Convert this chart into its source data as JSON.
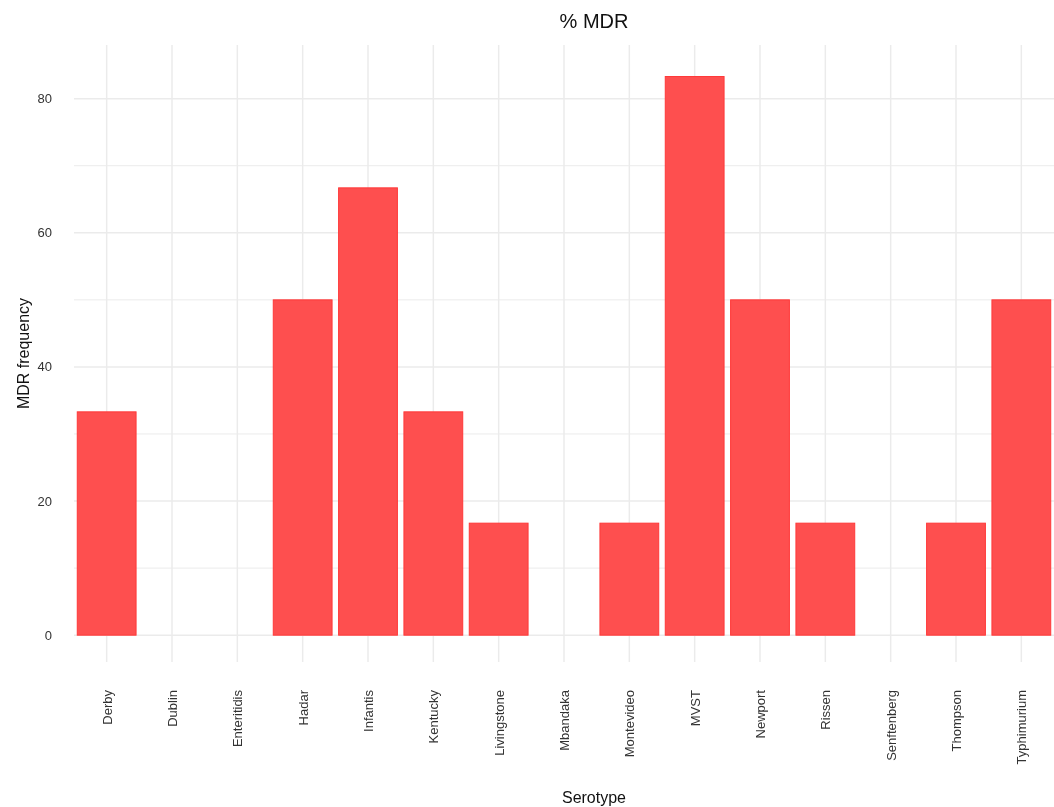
{
  "chart_data": {
    "type": "bar",
    "title": "% MDR",
    "xlabel": "Serotype",
    "ylabel": "MDR frequency",
    "categories": [
      "Derby",
      "Dublin",
      "Enteritidis",
      "Hadar",
      "Infantis",
      "Kentucky",
      "Livingstone",
      "Mbandaka",
      "Montevideo",
      "MVST",
      "Newport",
      "Rissen",
      "Senftenberg",
      "Thompson",
      "Typhimurium"
    ],
    "values": [
      33.3,
      0,
      0,
      50,
      66.7,
      33.3,
      16.7,
      0,
      16.7,
      83.3,
      50,
      16.7,
      0,
      16.7,
      50
    ],
    "color": "#fe4f4f",
    "ylim": [
      -4,
      88
    ],
    "yticks": [
      0,
      {
        "value": 10,
        "label": null
      },
      20,
      {
        "value": 30,
        "label": null
      },
      40,
      {
        "value": 50,
        "label": null
      },
      60,
      {
        "value": 70,
        "label": null
      },
      80
    ],
    "grid": true
  }
}
